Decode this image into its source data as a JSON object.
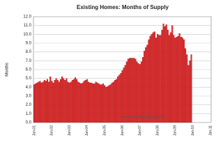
{
  "chart_data": {
    "type": "bar",
    "title": "Existing Homes: Months of Supply",
    "y_label": "Months",
    "watermark": "www.calculatedriskblog.com",
    "categories": [
      "Jan-01",
      null,
      null,
      null,
      null,
      null,
      null,
      null,
      null,
      null,
      null,
      null,
      "Jan-02",
      null,
      null,
      null,
      null,
      null,
      null,
      null,
      null,
      null,
      null,
      null,
      "Jan-03",
      null,
      null,
      null,
      null,
      null,
      null,
      null,
      null,
      null,
      null,
      null,
      "Jan-04",
      null,
      null,
      null,
      null,
      null,
      null,
      null,
      null,
      null,
      null,
      null,
      "Jan-05",
      null,
      null,
      null,
      null,
      null,
      null,
      null,
      null,
      null,
      null,
      null,
      "Jan-06",
      null,
      null,
      null,
      null,
      null,
      null,
      null,
      null,
      null,
      null,
      null,
      "Jan-07",
      null,
      null,
      null,
      null,
      null,
      null,
      null,
      null,
      null,
      null,
      null,
      "Jan-08",
      null,
      null,
      null,
      null,
      null,
      null,
      null,
      null,
      null,
      null,
      null,
      "Jan-09",
      null,
      null,
      null,
      null,
      null,
      null,
      null,
      null,
      null,
      null,
      null,
      "Jan-10",
      null,
      null,
      null,
      null,
      null,
      null,
      null,
      null,
      null,
      null,
      null,
      "Jan-11"
    ],
    "values": [
      4.3,
      4.4,
      4.5,
      4.6,
      4.7,
      4.5,
      4.6,
      4.8,
      4.7,
      4.9,
      4.6,
      5.2,
      4.7,
      4.5,
      4.8,
      5.0,
      4.8,
      4.6,
      4.9,
      5.2,
      5.0,
      4.8,
      5.0,
      4.6,
      4.5,
      4.6,
      4.8,
      4.9,
      5.1,
      4.9,
      4.6,
      4.5,
      4.4,
      4.5,
      4.7,
      4.8,
      4.9,
      4.6,
      4.5,
      4.5,
      4.4,
      4.4,
      4.6,
      4.5,
      4.4,
      4.3,
      4.3,
      4.4,
      4.2,
      4.0,
      4.1,
      4.2,
      4.3,
      4.5,
      4.6,
      4.8,
      4.9,
      5.2,
      5.4,
      5.6,
      5.9,
      6.2,
      6.5,
      6.9,
      7.2,
      7.3,
      7.3,
      7.3,
      7.3,
      7.2,
      6.9,
      6.7,
      6.6,
      6.9,
      7.4,
      8.1,
      8.5,
      8.8,
      9.4,
      9.8,
      10.0,
      10.2,
      10.3,
      9.6,
      10.0,
      9.9,
      9.9,
      10.5,
      11.2,
      10.9,
      11.1,
      10.5,
      9.9,
      10.2,
      11.0,
      9.9,
      9.6,
      9.7,
      9.8,
      10.1,
      9.7,
      9.6,
      9.4,
      8.4,
      7.7,
      6.5,
      7.0,
      7.7,
      null,
      null,
      null,
      null,
      null,
      null,
      null,
      null,
      null,
      null,
      null,
      null,
      null
    ],
    "color": "#e8282a",
    "edge_color": "#8b0000",
    "ylim": [
      0,
      12
    ],
    "yticks": [
      {
        "value": 0,
        "label": "0.0"
      },
      {
        "value": 1,
        "label": "1.0"
      },
      {
        "value": 2,
        "label": "2.0"
      },
      {
        "value": 3,
        "label": "3.0"
      },
      {
        "value": 4,
        "label": "4.0"
      },
      {
        "value": 5,
        "label": "5.0"
      },
      {
        "value": 6,
        "label": "6.0"
      },
      {
        "value": 7,
        "label": "7.0"
      },
      {
        "value": 8,
        "label": "8.0"
      },
      {
        "value": 9,
        "label": "9.0"
      },
      {
        "value": 10,
        "label": "10.0"
      },
      {
        "value": 11,
        "label": "11.0"
      },
      {
        "value": 12,
        "label": "12.0"
      }
    ],
    "grid": true
  }
}
